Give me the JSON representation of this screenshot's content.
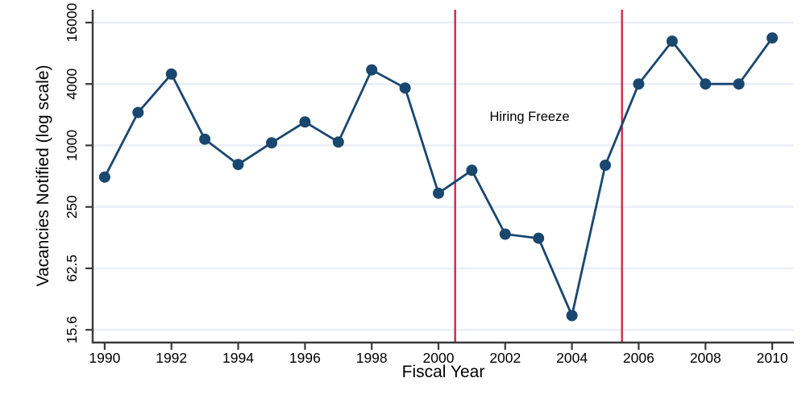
{
  "chart_data": {
    "type": "line",
    "title": "",
    "xlabel": "Fiscal Year",
    "ylabel": "Vacancies Notified (log scale)",
    "series_name": "Vacancies Notified",
    "x": [
      1990,
      1991,
      1992,
      1993,
      1994,
      1995,
      1996,
      1997,
      1998,
      1999,
      2000,
      2001,
      2002,
      2003,
      2004,
      2005,
      2006,
      2007,
      2008,
      2009,
      2010
    ],
    "values": [
      490,
      2100,
      5000,
      1150,
      650,
      1060,
      1700,
      1080,
      5500,
      3650,
      340,
      570,
      135,
      123,
      21.5,
      640,
      4000,
      10500,
      4000,
      4000,
      11300
    ],
    "xticks": [
      1990,
      1992,
      1994,
      1996,
      1998,
      2000,
      2002,
      2004,
      2006,
      2008,
      2010
    ],
    "yticks": [
      15.6,
      62.5,
      250,
      1000,
      4000,
      16000
    ],
    "ytick_labels": [
      "15.6",
      "62.5",
      "250",
      "1000",
      "4000",
      "16000"
    ],
    "scale": "log, tick spacing factor 4",
    "xlim": [
      1989.64,
      2010.65
    ],
    "ylim": [
      11.7,
      21400
    ],
    "grid": "horizontal gridlines at y ticks",
    "legend": "none",
    "annotation": {
      "text": "Hiring Freeze"
    },
    "reference_lines": [
      {
        "axis": "x",
        "value": 2000.5,
        "color": "#d12745"
      },
      {
        "axis": "x",
        "value": 2005.5,
        "color": "#d12745"
      }
    ],
    "colors": {
      "series": "#1a476f",
      "reference": "#d12745",
      "grid": "#eaeef6",
      "axis": "#3a3a3a",
      "text": "#000000",
      "background": "#ffffff"
    }
  }
}
